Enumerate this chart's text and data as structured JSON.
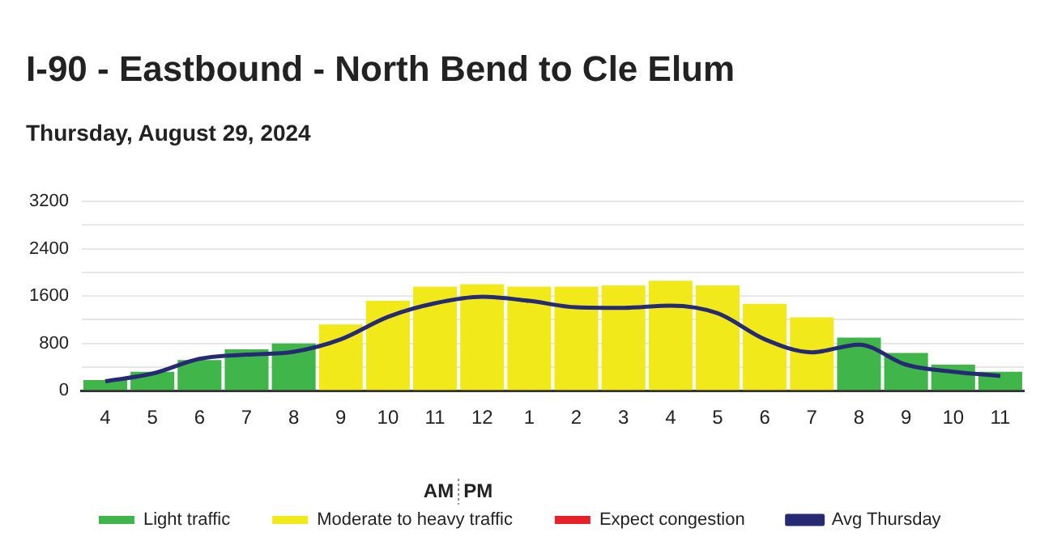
{
  "chart_data": {
    "type": "bar",
    "title": "I-90 - Eastbound - North Bend to Cle Elum",
    "subtitle": "Thursday, August 29, 2024",
    "categories": [
      "4",
      "5",
      "6",
      "7",
      "8",
      "9",
      "10",
      "11",
      "12",
      "1",
      "2",
      "3",
      "4",
      "5",
      "6",
      "7",
      "8",
      "9",
      "10",
      "11"
    ],
    "stacked": true,
    "series": [
      {
        "name": "Light traffic",
        "color": "#3fb54a",
        "values": [
          180,
          320,
          520,
          700,
          800,
          null,
          null,
          null,
          null,
          null,
          null,
          null,
          null,
          null,
          null,
          null,
          900,
          640,
          440,
          320
        ]
      },
      {
        "name": "Moderate to heavy traffic",
        "color": "#f2e91a",
        "values": [
          null,
          null,
          null,
          null,
          null,
          1120,
          1520,
          1760,
          1800,
          1760,
          1760,
          1780,
          1860,
          1780,
          1470,
          1240,
          null,
          null,
          null,
          null
        ]
      },
      {
        "name": "Expect congestion",
        "color": "#e8202a",
        "values": [
          null,
          null,
          null,
          null,
          null,
          null,
          null,
          null,
          null,
          null,
          null,
          null,
          null,
          null,
          null,
          null,
          null,
          null,
          null,
          null
        ]
      },
      {
        "name": "Avg Thursday",
        "type": "line",
        "color": "#252a73",
        "values": [
          160,
          290,
          540,
          610,
          660,
          870,
          1250,
          1480,
          1590,
          1520,
          1410,
          1400,
          1440,
          1310,
          870,
          650,
          780,
          440,
          320,
          250
        ]
      }
    ],
    "ylim": [
      0,
      3200
    ],
    "yticks": [
      0,
      {
        "value": 400,
        "label": null
      },
      800,
      {
        "value": 1200,
        "label": null
      },
      1600,
      {
        "value": 2000,
        "label": null
      },
      2400,
      {
        "value": 2800,
        "label": null
      },
      3200
    ],
    "grid": "y",
    "legend": "bottom",
    "marker": "none",
    "line_style": "solid",
    "annotations": [
      "AM",
      "PM"
    ]
  }
}
